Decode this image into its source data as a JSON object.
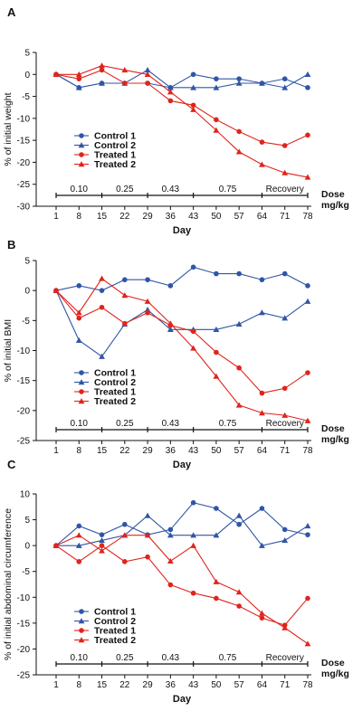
{
  "colors": {
    "control": "#2f56a6",
    "treated": "#e0241c",
    "axis": "#111111"
  },
  "chart_data": [
    {
      "panel_label": "A",
      "type": "line",
      "ylabel": "% of initial weight",
      "xlabel": "Day",
      "x": [
        1,
        8,
        15,
        22,
        29,
        36,
        43,
        50,
        57,
        64,
        71,
        78
      ],
      "ylim": [
        -30,
        5
      ],
      "yticks": [
        5,
        0,
        -5,
        -10,
        -15,
        -20,
        -25,
        -30
      ],
      "series": [
        {
          "name": "Control 1",
          "color": "control",
          "marker": "circle",
          "values": [
            0,
            -3,
            -2,
            -2,
            -2,
            -3,
            0,
            -1,
            -1,
            -2,
            -1,
            -3
          ]
        },
        {
          "name": "Control 2",
          "color": "control",
          "marker": "triangle",
          "values": [
            0,
            -3,
            -2,
            -2,
            1,
            -3,
            -3,
            -3,
            -2,
            -2,
            -3,
            0
          ]
        },
        {
          "name": "Treated 1",
          "color": "treated",
          "marker": "circle",
          "values": [
            0,
            -1,
            1,
            -2,
            -2,
            -6,
            -7,
            -10.3,
            -13,
            -15.4,
            -16.2,
            -13.8
          ]
        },
        {
          "name": "Treated 2",
          "color": "treated",
          "marker": "triangle",
          "values": [
            0,
            0,
            2,
            1,
            0,
            -4,
            -8,
            -12.7,
            -17.6,
            -20.5,
            -22.4,
            -23.4
          ]
        }
      ],
      "dose": {
        "label": "Dose",
        "unit": "mg/kg",
        "segments": [
          {
            "text": "0.10",
            "from": 1,
            "to": 15
          },
          {
            "text": "0.25",
            "from": 15,
            "to": 29
          },
          {
            "text": "0.43",
            "from": 29,
            "to": 43
          },
          {
            "text": "0.75",
            "from": 43,
            "to": 64
          },
          {
            "text": "Recovery",
            "from": 64,
            "to": 78
          }
        ]
      }
    },
    {
      "panel_label": "B",
      "type": "line",
      "ylabel": "% of initial BMI",
      "xlabel": "Day",
      "x": [
        1,
        8,
        15,
        22,
        29,
        36,
        43,
        50,
        57,
        64,
        71,
        78
      ],
      "ylim": [
        -25,
        5
      ],
      "yticks": [
        5,
        0,
        -5,
        -10,
        -15,
        -20,
        -25
      ],
      "series": [
        {
          "name": "Control 1",
          "color": "control",
          "marker": "circle",
          "values": [
            0,
            0.8,
            0,
            1.8,
            1.8,
            0.8,
            3.9,
            2.8,
            2.8,
            1.8,
            2.8,
            0.8
          ]
        },
        {
          "name": "Control 2",
          "color": "control",
          "marker": "triangle",
          "values": [
            0,
            -8.3,
            -11,
            -5.6,
            -3.2,
            -6.5,
            -6.5,
            -6.5,
            -5.6,
            -3.7,
            -4.6,
            -1.8
          ]
        },
        {
          "name": "Treated 1",
          "color": "treated",
          "marker": "circle",
          "values": [
            0,
            -4.6,
            -2.8,
            -5.5,
            -3.7,
            -5.8,
            -6.8,
            -10.3,
            -12.9,
            -17.1,
            -16.3,
            -13.7
          ]
        },
        {
          "name": "Treated 2",
          "color": "treated",
          "marker": "triangle",
          "values": [
            0,
            -3.7,
            2,
            -0.8,
            -1.8,
            -5.5,
            -9.6,
            -14.3,
            -19.1,
            -20.4,
            -20.8,
            -21.7
          ]
        }
      ],
      "dose": {
        "label": "Dose",
        "unit": "mg/kg",
        "segments": [
          {
            "text": "0.10",
            "from": 1,
            "to": 15
          },
          {
            "text": "0.25",
            "from": 15,
            "to": 29
          },
          {
            "text": "0.43",
            "from": 29,
            "to": 43
          },
          {
            "text": "0.75",
            "from": 43,
            "to": 64
          },
          {
            "text": "Recovery",
            "from": 64,
            "to": 78
          }
        ]
      }
    },
    {
      "panel_label": "C",
      "type": "line",
      "ylabel": "% of initial abdominal circumference",
      "xlabel": "Day",
      "x": [
        1,
        8,
        15,
        22,
        29,
        36,
        43,
        50,
        57,
        64,
        71,
        78
      ],
      "ylim": [
        -25,
        10
      ],
      "yticks": [
        10,
        5,
        0,
        -5,
        -10,
        -15,
        -20,
        -25
      ],
      "series": [
        {
          "name": "Control 1",
          "color": "control",
          "marker": "circle",
          "values": [
            0,
            3.8,
            2.1,
            4.1,
            2.1,
            3.1,
            8.3,
            7.2,
            4.1,
            7.2,
            3.1,
            2.1
          ]
        },
        {
          "name": "Control 2",
          "color": "control",
          "marker": "triangle",
          "values": [
            0,
            0,
            1,
            2,
            5.8,
            2,
            2,
            2,
            5.8,
            0,
            1,
            3.8
          ]
        },
        {
          "name": "Treated 1",
          "color": "treated",
          "marker": "circle",
          "values": [
            0,
            -3.1,
            0,
            -3.1,
            -2.2,
            -7.6,
            -9.2,
            -10.2,
            -11.7,
            -14,
            -15.4,
            -10.2
          ]
        },
        {
          "name": "Treated 2",
          "color": "treated",
          "marker": "triangle",
          "values": [
            0,
            2,
            -1,
            2,
            2,
            -3,
            0,
            -7,
            -9,
            -13.1,
            -15.9,
            -19
          ]
        }
      ],
      "dose": {
        "label": "Dose",
        "unit": "mg/kg",
        "segments": [
          {
            "text": "0.10",
            "from": 1,
            "to": 15
          },
          {
            "text": "0.25",
            "from": 15,
            "to": 29
          },
          {
            "text": "0.43",
            "from": 29,
            "to": 43
          },
          {
            "text": "0.75",
            "from": 43,
            "to": 64
          },
          {
            "text": "Recovery",
            "from": 64,
            "to": 78
          }
        ]
      }
    }
  ]
}
